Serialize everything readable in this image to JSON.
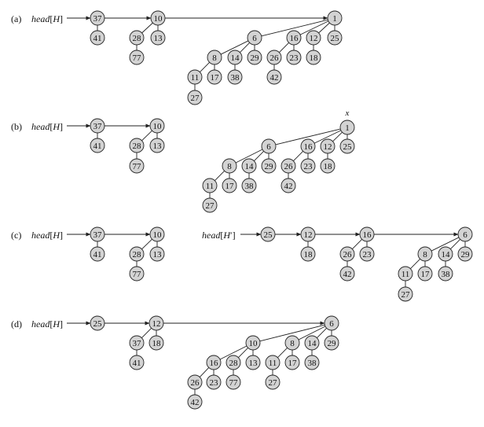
{
  "panels": [
    {
      "label": "(a)",
      "heads": [
        {
          "text": "head",
          "arg": "H",
          "prime": false
        }
      ],
      "nodes": {
        "a37": "37",
        "a41": "41",
        "a10": "10",
        "a28": "28",
        "a77": "77",
        "a13": "13",
        "a1": "1",
        "a6": "6",
        "a8": "8",
        "a11": "11",
        "a27": "27",
        "a17": "17",
        "a14": "14",
        "a38": "38",
        "a29": "29",
        "a16": "16",
        "a26": "26",
        "a42": "42",
        "a23": "23",
        "a12": "12",
        "a18": "18",
        "a25": "25"
      }
    },
    {
      "label": "(b)",
      "heads": [
        {
          "text": "head",
          "arg": "H",
          "prime": false
        }
      ],
      "marker": "x",
      "nodes": {
        "b37": "37",
        "b41": "41",
        "b10": "10",
        "b28": "28",
        "b77": "77",
        "b13": "13",
        "b1": "1",
        "b6": "6",
        "b8": "8",
        "b11": "11",
        "b27": "27",
        "b17": "17",
        "b14": "14",
        "b38": "38",
        "b29": "29",
        "b16": "16",
        "b26": "26",
        "b42": "42",
        "b23": "23",
        "b12": "12",
        "b18": "18",
        "b25": "25"
      }
    },
    {
      "label": "(c)",
      "heads": [
        {
          "text": "head",
          "arg": "H",
          "prime": false
        },
        {
          "text": "head",
          "arg": "H",
          "prime": true
        }
      ],
      "nodes": {
        "c37": "37",
        "c41": "41",
        "c10": "10",
        "c28": "28",
        "c77": "77",
        "c13": "13",
        "c25": "25",
        "c12": "12",
        "c18": "18",
        "c16": "16",
        "c26": "26",
        "c42": "42",
        "c23": "23",
        "c6": "6",
        "c8": "8",
        "c11": "11",
        "c27": "27",
        "c17": "17",
        "c14": "14",
        "c38": "38",
        "c29": "29"
      }
    },
    {
      "label": "(d)",
      "heads": [
        {
          "text": "head",
          "arg": "H",
          "prime": false
        }
      ],
      "nodes": {
        "d25": "25",
        "d12": "12",
        "d37": "37",
        "d41": "41",
        "d18": "18",
        "d6": "6",
        "d10": "10",
        "d16": "16",
        "d26": "26",
        "d42": "42",
        "d23": "23",
        "d28": "28",
        "d77": "77",
        "d13": "13",
        "d8": "8",
        "d11": "11",
        "d27": "27",
        "d17": "17",
        "d14": "14",
        "d38": "38",
        "d29": "29"
      }
    }
  ]
}
